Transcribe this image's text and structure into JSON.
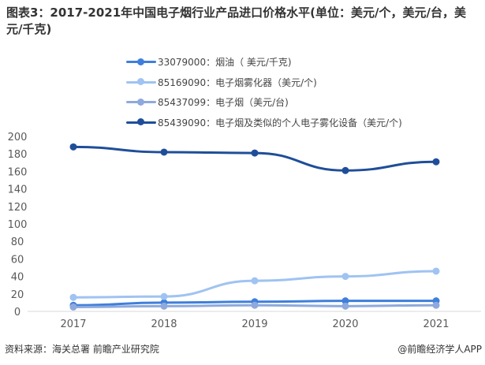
{
  "chart_data": {
    "type": "line",
    "title": "图表3：2017-2021年中国电子烟行业产品进口价格水平(单位：美元/个，美元/台，美元/千克)",
    "categories": [
      "2017",
      "2018",
      "2019",
      "2020",
      "2021"
    ],
    "ylim": [
      0,
      200
    ],
    "yticks": [
      0,
      20,
      40,
      60,
      80,
      100,
      120,
      140,
      160,
      180,
      200
    ],
    "grid": false,
    "legend_position": "top",
    "series": [
      {
        "name": "33079000：烟油（ 美元/千克)",
        "color": "#3f7fdc",
        "values": [
          7,
          10,
          11,
          12,
          12
        ]
      },
      {
        "name": "85169090：电子烟雾化器（美元/个)",
        "color": "#9fc3f2",
        "values": [
          16,
          17,
          35,
          40,
          46
        ]
      },
      {
        "name": "85437099：电子烟（美元/台)",
        "color": "#8ea9dc",
        "values": [
          5,
          6,
          7,
          6,
          7
        ]
      },
      {
        "name": "85439090：电子烟及类似的个人电子雾化设备（美元/个)",
        "color": "#1f4e99",
        "values": [
          188,
          182,
          181,
          161,
          171
        ]
      }
    ]
  },
  "footer": {
    "source": "资料来源：海关总署 前瞻产业研究院",
    "brand": "@前瞻经济学人APP"
  }
}
